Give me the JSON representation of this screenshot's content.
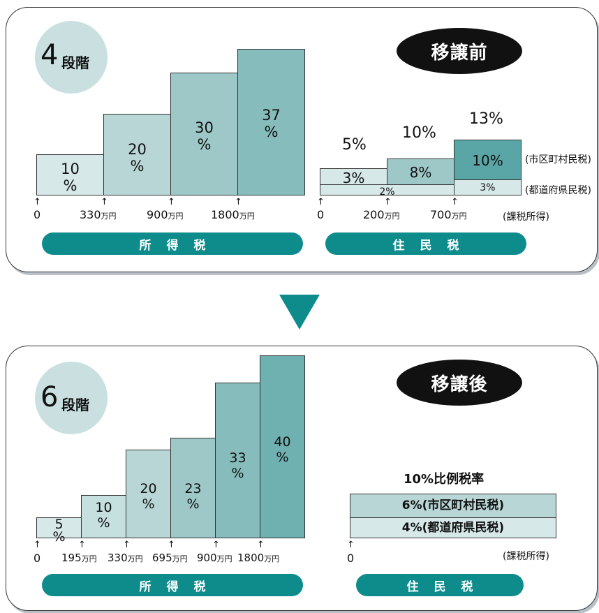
{
  "before": {
    "stage_num": "4",
    "stage_suffix": "段階",
    "label": "移譲前",
    "income_tax": {
      "bars": [
        "10\n%",
        "20\n%",
        "30\n%",
        "37\n%"
      ],
      "ticks": [
        "0",
        "330",
        "900",
        "1800"
      ],
      "unit": "万円",
      "pill": "所得税"
    },
    "resident_tax": {
      "tops": [
        "5%",
        "10%",
        "13%"
      ],
      "municipal": [
        "3%",
        "8%",
        "10%"
      ],
      "prefectural": [
        "2%",
        "2%",
        "3%"
      ],
      "side_municipal": "(市区町村民税)",
      "side_prefectural": "(都道府県民税)",
      "ticks": [
        "0",
        "200",
        "700"
      ],
      "unit": "万円",
      "taxable": "(課税所得)",
      "pill": "住民税"
    }
  },
  "after": {
    "stage_num": "6",
    "stage_suffix": "段階",
    "label": "移譲後",
    "income_tax": {
      "bars": [
        "5\n%",
        "10\n%",
        "20\n%",
        "23\n%",
        "33\n%",
        "40\n%"
      ],
      "ticks": [
        "0",
        "195",
        "330",
        "695",
        "900",
        "1800"
      ],
      "unit": "万円",
      "pill": "所得税"
    },
    "resident_tax": {
      "title": "10%比例税率",
      "municipal": "6%(市区町村民税)",
      "prefectural": "4%(都道府県民税)",
      "tick": "0",
      "taxable": "(課税所得)",
      "pill": "住民税"
    }
  },
  "colors": {
    "teal": "#0e8c8c",
    "bar1": "#d7e8e8",
    "bar2": "#b9d6d6",
    "bar3": "#9ec8c8",
    "bar4": "#86bcbc",
    "bar5": "#6fb0b0",
    "bar6": "#5aa5a5"
  }
}
